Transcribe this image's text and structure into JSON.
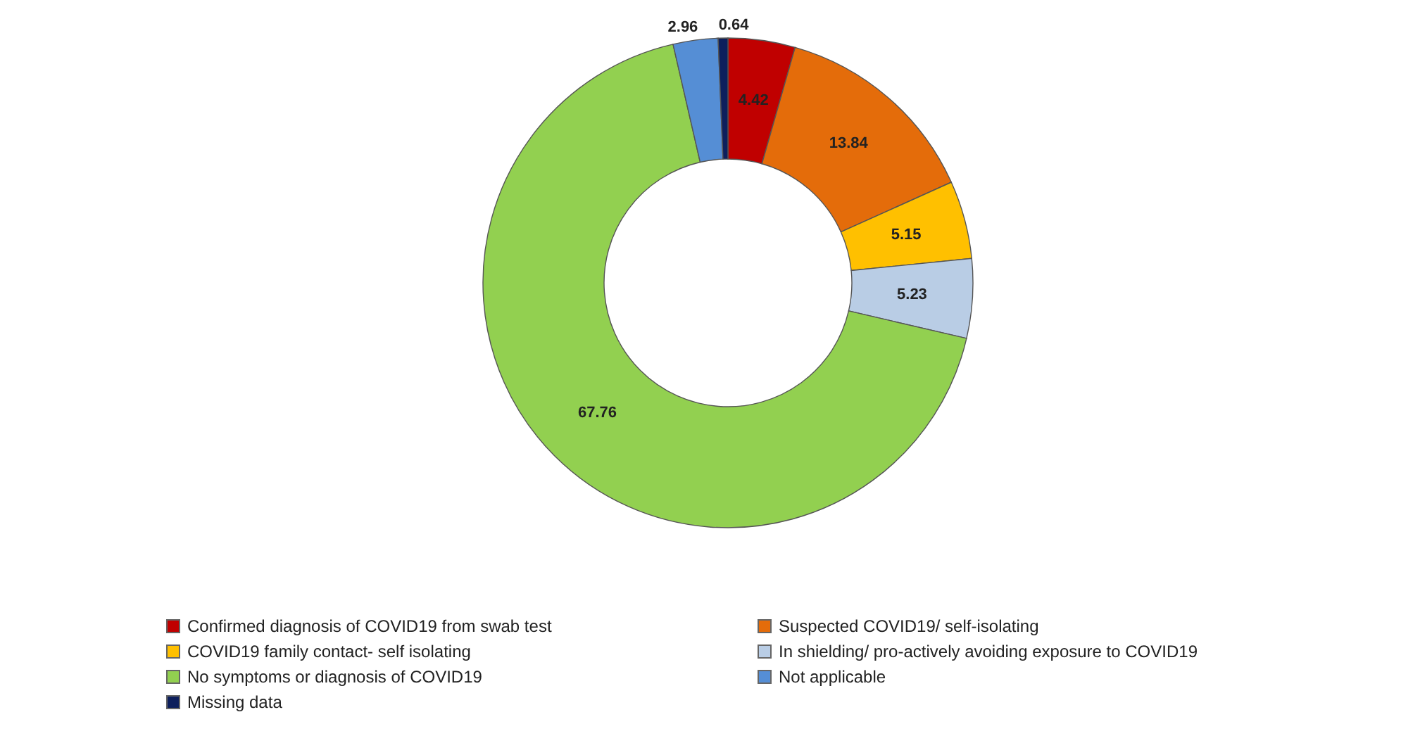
{
  "chart_data": {
    "type": "donut",
    "categories": [
      "Confirmed diagnosis of COVID19 from swab test",
      "Suspected COVID19/ self-isolating",
      "COVID19 family contact- self isolating",
      "In shielding/ pro-actively avoiding exposure to COVID19",
      "No symptoms or diagnosis of COVID19",
      "Not applicable",
      "Missing data"
    ],
    "values": [
      4.42,
      13.84,
      5.15,
      5.23,
      67.76,
      2.96,
      0.64
    ],
    "colors": [
      "#c00000",
      "#e46c0a",
      "#ffc000",
      "#b9cde5",
      "#92d050",
      "#558ed5",
      "#0d1f5c"
    ],
    "data_labels": true,
    "legend": "bottom"
  }
}
